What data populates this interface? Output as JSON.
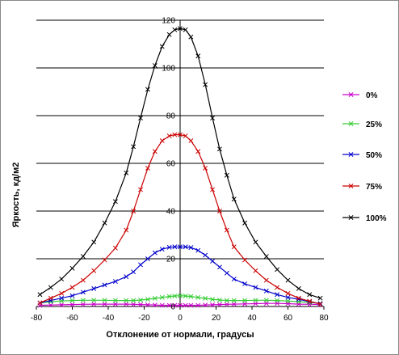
{
  "chart_data": {
    "type": "line",
    "title": "",
    "xlabel": "Отклонение от нормали, градусы",
    "ylabel": "Яркость, кд/м2",
    "xlim": [
      -80,
      80
    ],
    "ylim": [
      0,
      120
    ],
    "xticks": [
      -80,
      -60,
      -40,
      -20,
      0,
      20,
      40,
      60,
      80
    ],
    "yticks": [
      0,
      20,
      40,
      60,
      80,
      100,
      120
    ],
    "grid": "horizontal",
    "legend_position": "right",
    "x": [
      -78,
      -72,
      -66,
      -60,
      -54,
      -48,
      -42,
      -36,
      -30,
      -26,
      -22,
      -18,
      -14,
      -10,
      -6,
      -3,
      0,
      3,
      6,
      10,
      14,
      18,
      22,
      26,
      30,
      36,
      42,
      48,
      54,
      60,
      66,
      72,
      78
    ],
    "series": [
      {
        "name": "0%",
        "color": "#cc00cc",
        "marker": "x",
        "values": [
          0.5,
          0.6,
          0.7,
          0.8,
          0.9,
          1.0,
          1.0,
          1.0,
          1.0,
          0.9,
          0.8,
          0.7,
          0.6,
          0.5,
          0.5,
          0.5,
          0.5,
          0.5,
          0.5,
          0.5,
          0.6,
          0.7,
          0.8,
          0.9,
          1.0,
          1.1,
          1.2,
          1.3,
          1.3,
          1.2,
          1.0,
          0.9,
          0.8
        ]
      },
      {
        "name": "25%",
        "color": "#33cc33",
        "marker": "x",
        "values": [
          1.5,
          2.0,
          2.3,
          2.5,
          2.6,
          2.6,
          2.6,
          2.5,
          2.5,
          2.5,
          2.7,
          3.0,
          3.4,
          3.8,
          4.2,
          4.4,
          4.5,
          4.4,
          4.2,
          3.8,
          3.4,
          3.0,
          2.7,
          2.5,
          2.5,
          2.5,
          2.6,
          2.6,
          2.5,
          2.3,
          2.0,
          1.7,
          1.3
        ]
      },
      {
        "name": "50%",
        "color": "#0000cc",
        "marker": "x",
        "values": [
          1.5,
          2.5,
          3.5,
          4.5,
          6.0,
          7.5,
          9.0,
          10.5,
          12.5,
          14.5,
          17.5,
          20.0,
          22.5,
          24.0,
          24.8,
          25.0,
          25.0,
          25.0,
          24.7,
          23.5,
          21.5,
          19.0,
          16.5,
          14.0,
          11.5,
          9.5,
          8.0,
          6.5,
          5.0,
          3.8,
          3.0,
          2.0,
          1.2
        ]
      },
      {
        "name": "75%",
        "color": "#cc0000",
        "marker": "x",
        "values": [
          1.5,
          3.5,
          5.5,
          8.0,
          11.0,
          15.0,
          19.5,
          24.5,
          32.0,
          40.0,
          49.0,
          58.0,
          65.0,
          69.5,
          71.5,
          72.0,
          72.0,
          71.5,
          69.5,
          65.0,
          58.0,
          49.0,
          40.0,
          32.0,
          25.0,
          19.5,
          15.0,
          11.0,
          8.0,
          5.5,
          3.5,
          2.2,
          1.0
        ]
      },
      {
        "name": "100%",
        "color": "#000000",
        "marker": "x",
        "values": [
          5.0,
          8.0,
          11.5,
          16.0,
          21.0,
          27.0,
          35.0,
          44.0,
          56.0,
          67.0,
          79.0,
          91.0,
          101.0,
          109.0,
          114.0,
          116.0,
          116.5,
          116.0,
          113.0,
          105.0,
          93.0,
          79.0,
          66.0,
          55.0,
          45.0,
          35.0,
          27.0,
          21.0,
          15.5,
          11.0,
          7.5,
          5.0,
          3.5
        ]
      }
    ]
  }
}
